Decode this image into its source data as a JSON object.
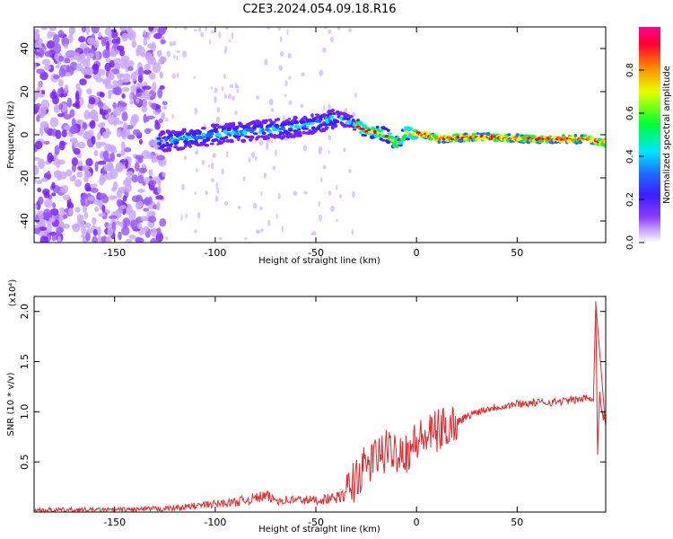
{
  "title": "C2E3.2024.054.09.18.R16",
  "colors": {
    "snr_line": "#e8272a",
    "spectrum_low": "#7a1fff",
    "spectrum_high": "#ff0033"
  },
  "chart_data": [
    {
      "type": "heatmap",
      "xlabel": "Height of straight line (km)",
      "ylabel": "Frequency (Hz)",
      "xlim": [
        -190,
        94
      ],
      "ylim": [
        -50,
        50
      ],
      "xticks": [
        -150,
        -100,
        -50,
        0,
        50
      ],
      "yticks": [
        -40,
        -20,
        0,
        20,
        40
      ],
      "colorbar": {
        "label": "Normalized spectral amplitude",
        "range": [
          0.0,
          1.0
        ],
        "ticks": [
          "0.0",
          "0.2",
          "0.4",
          "0.6",
          "0.8"
        ],
        "colors": [
          "#ffffff",
          "#7a1fff",
          "#1f1fff",
          "#00e5ff",
          "#00ff33",
          "#ffff00",
          "#ff8000",
          "#ff0033",
          "#ff00aa"
        ]
      },
      "ridge_center": [
        {
          "x": -125,
          "y": -3
        },
        {
          "x": -100,
          "y": 0
        },
        {
          "x": -80,
          "y": 2
        },
        {
          "x": -65,
          "y": 3
        },
        {
          "x": -50,
          "y": 5
        },
        {
          "x": -40,
          "y": 8
        },
        {
          "x": -33,
          "y": 6
        },
        {
          "x": -25,
          "y": 2
        },
        {
          "x": -15,
          "y": 0
        },
        {
          "x": -10,
          "y": -4
        },
        {
          "x": -5,
          "y": 1
        },
        {
          "x": 5,
          "y": 0
        },
        {
          "x": 10,
          "y": -2
        },
        {
          "x": 30,
          "y": -1
        },
        {
          "x": 60,
          "y": -2
        },
        {
          "x": 85,
          "y": -2
        },
        {
          "x": 94,
          "y": -4
        }
      ]
    },
    {
      "type": "line",
      "xlabel": "Height of straight line (km)",
      "ylabel": "SNR (10 * v/v)",
      "scale_note": "(x10⁴)",
      "xlim": [
        -190,
        94
      ],
      "ylim": [
        0,
        2.15
      ],
      "xticks": [
        -150,
        -100,
        -50,
        0,
        50
      ],
      "yticks": [
        0.5,
        1.0,
        1.5,
        2.0
      ],
      "ytick_labels": [
        "0.5",
        "1.0",
        "1.5",
        "2.0"
      ],
      "series": [
        {
          "x": [
            -190,
            -170,
            -150,
            -130,
            -120,
            -110,
            -100,
            -90,
            -80,
            -75,
            -70,
            -60,
            -50,
            -40,
            -35,
            -30,
            -25,
            -20,
            -15,
            -10,
            -5,
            0,
            5,
            10,
            15,
            20,
            25,
            30,
            35,
            40,
            45,
            50,
            60,
            70,
            80,
            88,
            89,
            90,
            91,
            92,
            94
          ],
          "y": [
            0.02,
            0.02,
            0.02,
            0.03,
            0.04,
            0.06,
            0.08,
            0.1,
            0.14,
            0.16,
            0.12,
            0.12,
            0.12,
            0.14,
            0.17,
            0.35,
            0.45,
            0.55,
            0.6,
            0.62,
            0.6,
            0.7,
            0.75,
            0.8,
            0.85,
            0.9,
            0.95,
            1.0,
            1.03,
            1.05,
            1.06,
            1.08,
            1.09,
            1.1,
            1.12,
            1.15,
            2.1,
            0.6,
            1.2,
            1.0,
            0.9
          ]
        }
      ]
    }
  ]
}
